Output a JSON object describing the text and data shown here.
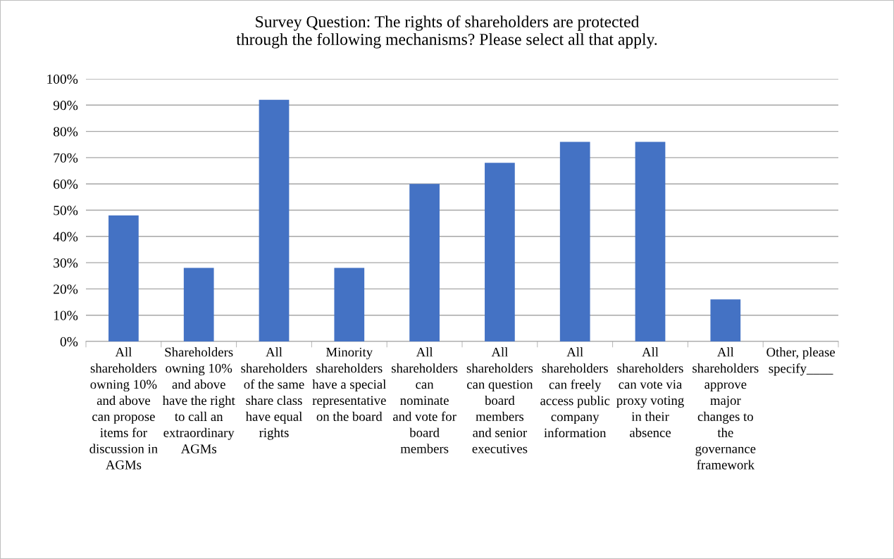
{
  "chart_data": {
    "type": "bar",
    "title": "Survey Question: The rights of shareholders are protected\nthrough the following mechanisms? Please select all that apply.",
    "categories": [
      "All\nshareholders\nowning 10%\nand above\ncan propose\nitems for\ndiscussion in\nAGMs",
      "Shareholders\nowning 10%\nand above\nhave the right\nto call an\nextraordinary\nAGMs",
      "All\nshareholders\nof the same\nshare class\nhave equal\nrights",
      "Minority\nshareholders\nhave a special\nrepresentative\non the board",
      "All\nshareholders\ncan\nnominate\nand vote for\nboard\nmembers",
      "All\nshareholders\ncan question\nboard\nmembers\nand senior\nexecutives",
      "All\nshareholders\ncan freely\naccess public\ncompany\ninformation",
      "All\nshareholders\ncan vote via\nproxy voting\nin their\nabsence",
      "All\nshareholders\napprove\nmajor\nchanges to\nthe\ngovernance\nframework",
      "Other, please\nspecify____"
    ],
    "values": [
      48,
      28,
      92,
      28,
      60,
      68,
      76,
      76,
      16,
      0
    ],
    "color": "#4472c4",
    "ylim": [
      0,
      100
    ],
    "yticks": [
      {
        "value": 0,
        "label": "0%"
      },
      {
        "value": 10,
        "label": "10%"
      },
      {
        "value": 20,
        "label": "20%"
      },
      {
        "value": 30,
        "label": "30%"
      },
      {
        "value": 40,
        "label": "40%"
      },
      {
        "value": 50,
        "label": "50%"
      },
      {
        "value": 60,
        "label": "60%"
      },
      {
        "value": 70,
        "label": "70%"
      },
      {
        "value": 80,
        "label": "80%"
      },
      {
        "value": 90,
        "label": "90%"
      },
      {
        "value": 100,
        "label": "100%"
      }
    ],
    "grid": "y",
    "legend": false
  }
}
